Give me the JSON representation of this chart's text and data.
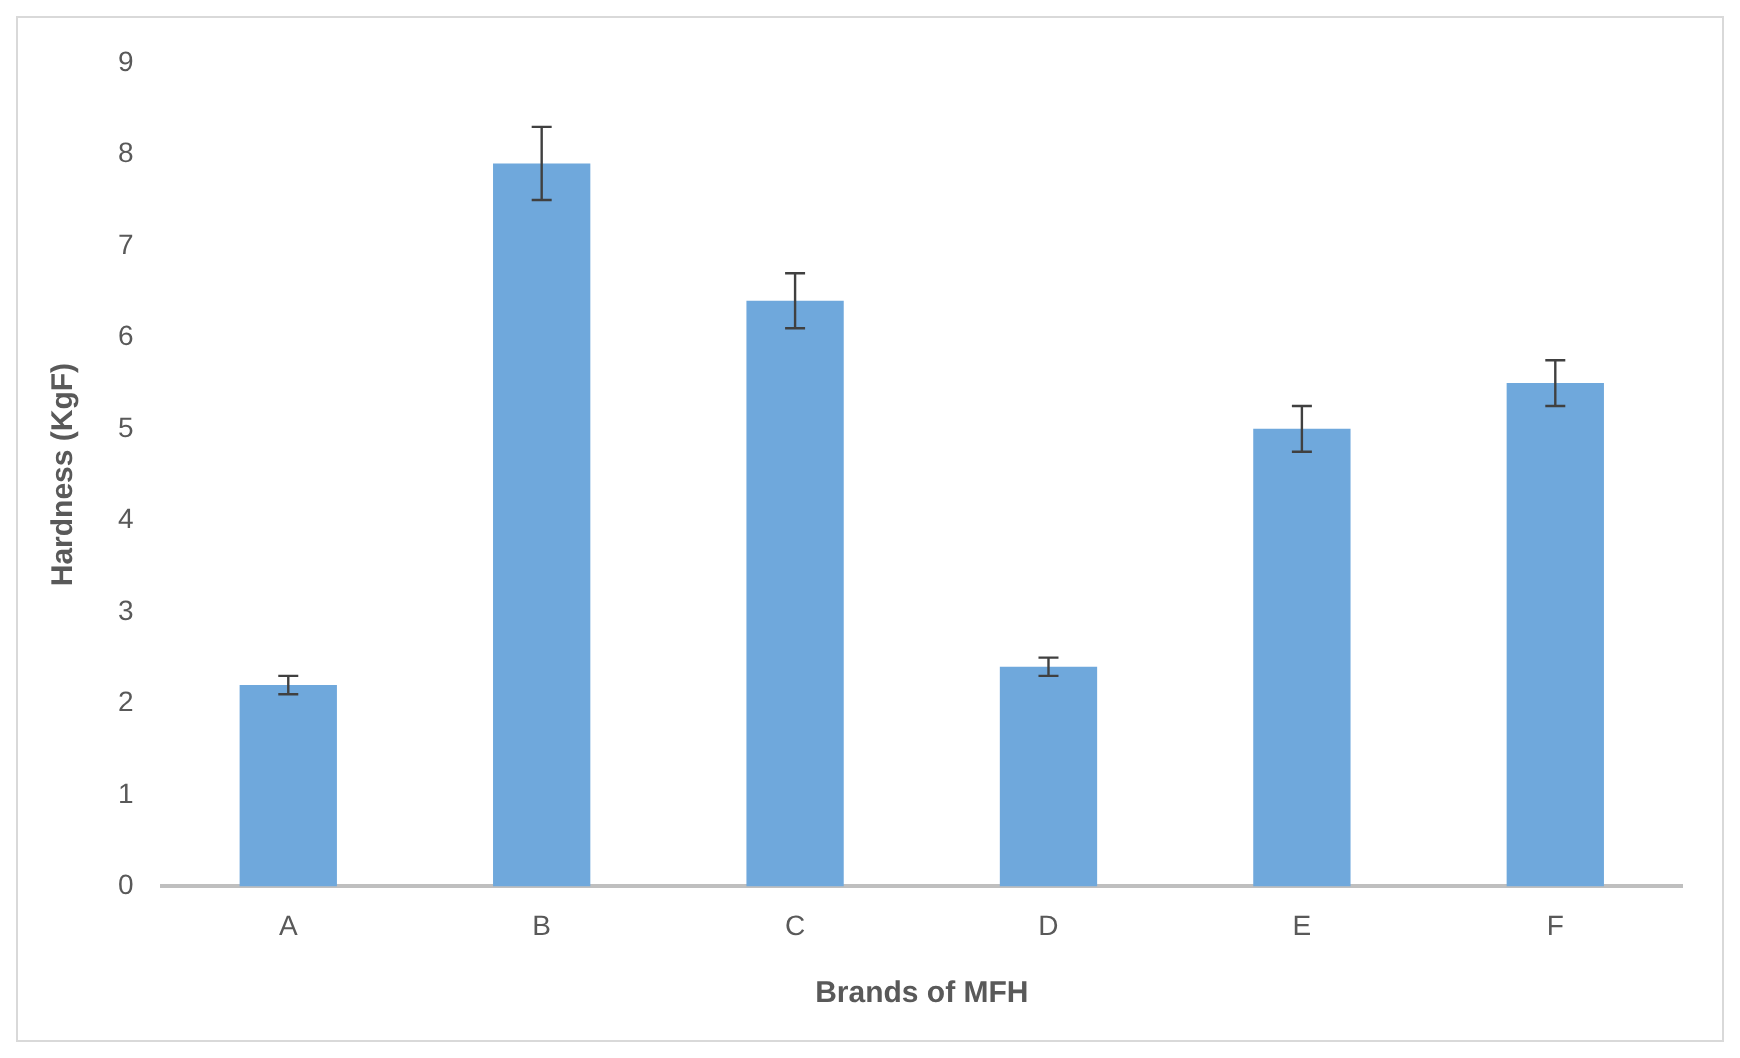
{
  "chart_data": {
    "type": "bar",
    "xlabel": "Brands of MFH",
    "ylabel": "Hardness (KgF)",
    "categories": [
      "A",
      "B",
      "C",
      "D",
      "E",
      "F"
    ],
    "values": [
      2.2,
      7.9,
      6.4,
      2.4,
      5.0,
      5.5
    ],
    "errors": [
      0.1,
      0.4,
      0.3,
      0.1,
      0.25,
      0.25
    ],
    "color": "#6fa8dc",
    "ylim": [
      0,
      9
    ],
    "yticks": [
      0,
      1,
      2,
      3,
      4,
      5,
      6,
      7,
      8,
      9
    ],
    "grid": false,
    "legend": false
  }
}
